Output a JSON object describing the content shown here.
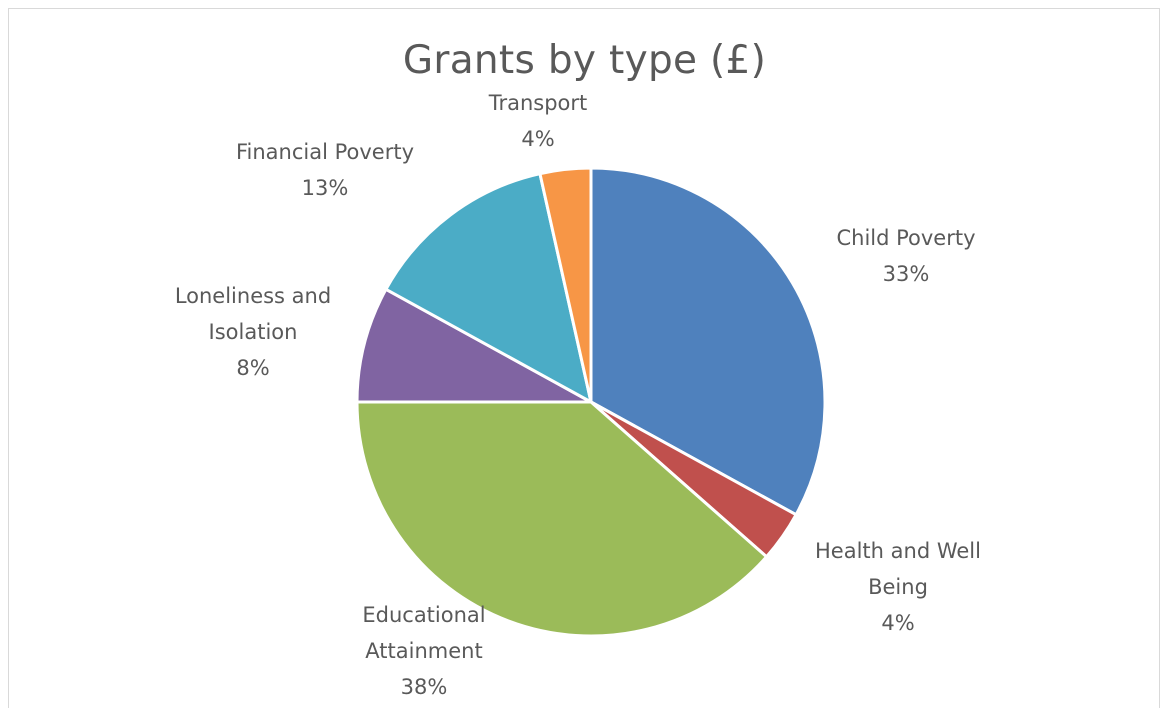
{
  "chart_data": {
    "type": "pie",
    "title": "Grants by type (£)",
    "slices": [
      {
        "label_lines": [
          "Child Poverty"
        ],
        "percent_label": "33%",
        "value": 33,
        "color": "#4f81bd"
      },
      {
        "label_lines": [
          "Health and Well",
          "Being"
        ],
        "percent_label": "4%",
        "value": 3.5,
        "color": "#c0504d"
      },
      {
        "label_lines": [
          "Educational",
          "Attainment"
        ],
        "percent_label": "38%",
        "value": 38.5,
        "color": "#9bbb59"
      },
      {
        "label_lines": [
          "Loneliness and",
          "Isolation"
        ],
        "percent_label": "8%",
        "value": 8,
        "color": "#8064a2"
      },
      {
        "label_lines": [
          "Financial Poverty"
        ],
        "percent_label": "13%",
        "value": 13.5,
        "color": "#4bacc6"
      },
      {
        "label_lines": [
          "Transport"
        ],
        "percent_label": "4%",
        "value": 3.5,
        "color": "#f79646"
      }
    ],
    "legend": "none"
  }
}
